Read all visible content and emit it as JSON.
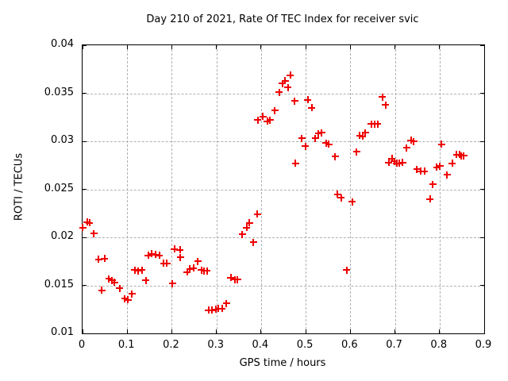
{
  "chart_data": {
    "type": "scatter",
    "title": "Day 210 of 2021, Rate Of TEC Index for receiver svic",
    "xlabel": "GPS time / hours",
    "ylabel": "ROTI / TECUs",
    "xlim": [
      0,
      0.9
    ],
    "ylim": [
      0.01,
      0.04
    ],
    "xticks": [
      0,
      0.1,
      0.2,
      0.3,
      0.4,
      0.5,
      0.6,
      0.7,
      0.8,
      0.9
    ],
    "xtick_labels": [
      "0",
      "0.1",
      "0.2",
      "0.3",
      "0.4",
      "0.5",
      "0.6",
      "0.7",
      "0.8",
      "0.9"
    ],
    "yticks": [
      0.01,
      0.015,
      0.02,
      0.025,
      0.03,
      0.035,
      0.04
    ],
    "ytick_labels": [
      "0.01",
      "0.015",
      "0.02",
      "0.025",
      "0.03",
      "0.035",
      "0.04"
    ],
    "grid": true,
    "legend_position": "none",
    "marker": "plus",
    "marker_color": "#ee0000",
    "grid_color": "#b0b0b0",
    "series": [
      {
        "name": "ROTI",
        "points": [
          [
            0.0,
            0.021
          ],
          [
            0.01,
            0.0216
          ],
          [
            0.016,
            0.0215
          ],
          [
            0.025,
            0.0204
          ],
          [
            0.036,
            0.0177
          ],
          [
            0.043,
            0.0145
          ],
          [
            0.049,
            0.0178
          ],
          [
            0.059,
            0.0157
          ],
          [
            0.066,
            0.0155
          ],
          [
            0.072,
            0.0153
          ],
          [
            0.083,
            0.0147
          ],
          [
            0.095,
            0.0136
          ],
          [
            0.102,
            0.0135
          ],
          [
            0.111,
            0.0141
          ],
          [
            0.117,
            0.0166
          ],
          [
            0.125,
            0.0165
          ],
          [
            0.133,
            0.0166
          ],
          [
            0.142,
            0.0155
          ],
          [
            0.147,
            0.0181
          ],
          [
            0.155,
            0.0183
          ],
          [
            0.163,
            0.0182
          ],
          [
            0.172,
            0.0181
          ],
          [
            0.182,
            0.0173
          ],
          [
            0.189,
            0.0173
          ],
          [
            0.201,
            0.0152
          ],
          [
            0.206,
            0.0188
          ],
          [
            0.218,
            0.0187
          ],
          [
            0.219,
            0.0179
          ],
          [
            0.234,
            0.0164
          ],
          [
            0.241,
            0.0167
          ],
          [
            0.249,
            0.0168
          ],
          [
            0.258,
            0.0175
          ],
          [
            0.266,
            0.0166
          ],
          [
            0.273,
            0.0165
          ],
          [
            0.279,
            0.0165
          ],
          [
            0.282,
            0.0124
          ],
          [
            0.29,
            0.0124
          ],
          [
            0.298,
            0.0125
          ],
          [
            0.305,
            0.0126
          ],
          [
            0.313,
            0.0126
          ],
          [
            0.322,
            0.0131
          ],
          [
            0.332,
            0.0158
          ],
          [
            0.341,
            0.0156
          ],
          [
            0.347,
            0.0156
          ],
          [
            0.358,
            0.0203
          ],
          [
            0.368,
            0.021
          ],
          [
            0.374,
            0.0215
          ],
          [
            0.383,
            0.0195
          ],
          [
            0.392,
            0.0224
          ],
          [
            0.393,
            0.0322
          ],
          [
            0.404,
            0.0326
          ],
          [
            0.414,
            0.0321
          ],
          [
            0.42,
            0.0322
          ],
          [
            0.431,
            0.0332
          ],
          [
            0.441,
            0.0351
          ],
          [
            0.448,
            0.036
          ],
          [
            0.454,
            0.0363
          ],
          [
            0.46,
            0.0356
          ],
          [
            0.466,
            0.0369
          ],
          [
            0.475,
            0.0342
          ],
          [
            0.477,
            0.0277
          ],
          [
            0.491,
            0.0303
          ],
          [
            0.499,
            0.0295
          ],
          [
            0.505,
            0.0343
          ],
          [
            0.514,
            0.0335
          ],
          [
            0.522,
            0.0303
          ],
          [
            0.529,
            0.0308
          ],
          [
            0.536,
            0.0309
          ],
          [
            0.546,
            0.0298
          ],
          [
            0.552,
            0.0297
          ],
          [
            0.566,
            0.0284
          ],
          [
            0.571,
            0.0245
          ],
          [
            0.579,
            0.0241
          ],
          [
            0.592,
            0.0166
          ],
          [
            0.604,
            0.0237
          ],
          [
            0.614,
            0.0289
          ],
          [
            0.621,
            0.0306
          ],
          [
            0.627,
            0.0305
          ],
          [
            0.634,
            0.0309
          ],
          [
            0.647,
            0.0318
          ],
          [
            0.654,
            0.0318
          ],
          [
            0.661,
            0.0318
          ],
          [
            0.672,
            0.0346
          ],
          [
            0.679,
            0.0338
          ],
          [
            0.686,
            0.0278
          ],
          [
            0.693,
            0.0282
          ],
          [
            0.699,
            0.0279
          ],
          [
            0.704,
            0.0277
          ],
          [
            0.71,
            0.0277
          ],
          [
            0.717,
            0.0278
          ],
          [
            0.726,
            0.0293
          ],
          [
            0.736,
            0.0301
          ],
          [
            0.742,
            0.03
          ],
          [
            0.749,
            0.0271
          ],
          [
            0.758,
            0.0269
          ],
          [
            0.766,
            0.0269
          ],
          [
            0.779,
            0.024
          ],
          [
            0.785,
            0.0255
          ],
          [
            0.794,
            0.0273
          ],
          [
            0.801,
            0.0274
          ],
          [
            0.804,
            0.0297
          ],
          [
            0.817,
            0.0265
          ],
          [
            0.828,
            0.0277
          ],
          [
            0.838,
            0.0286
          ],
          [
            0.844,
            0.0286
          ],
          [
            0.849,
            0.0285
          ],
          [
            0.854,
            0.0285
          ]
        ]
      }
    ]
  }
}
